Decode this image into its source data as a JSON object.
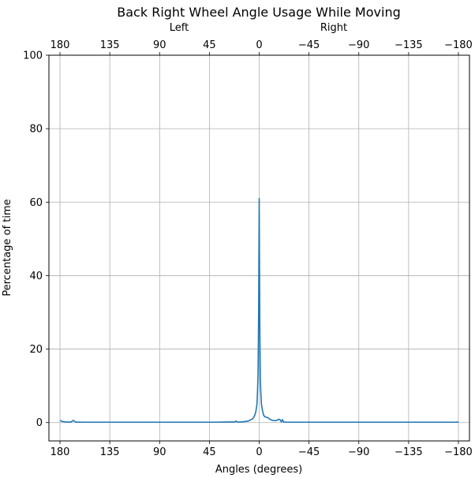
{
  "chart_data": {
    "type": "line",
    "title": "Back Right Wheel Angle Usage While Moving",
    "xlabel": "Angles (degrees)",
    "ylabel": "Percentage of time",
    "top_labels": {
      "left": "Left",
      "right": "Right"
    },
    "xlim": [
      190,
      -190
    ],
    "ylim": [
      -5,
      100
    ],
    "xticks": [
      180,
      135,
      90,
      45,
      0,
      -45,
      -90,
      -135,
      -180
    ],
    "xtick_labels": [
      "180",
      "135",
      "90",
      "45",
      "0",
      "−45",
      "−90",
      "−135",
      "−180"
    ],
    "yticks": [
      0,
      20,
      40,
      60,
      80,
      100
    ],
    "ytick_labels": [
      "0",
      "20",
      "40",
      "60",
      "80",
      "100"
    ],
    "grid": true,
    "series": [
      {
        "color": "#1f77b4",
        "x": [
          180,
          178,
          175,
          170,
          168,
          166,
          160,
          120,
          80,
          40,
          30,
          22,
          21,
          20,
          19,
          18,
          15,
          10,
          8,
          6,
          5,
          4,
          3,
          2,
          1.5,
          1,
          0.5,
          0,
          -0.5,
          -1,
          -1.5,
          -2,
          -3,
          -4,
          -5,
          -6,
          -8,
          -10,
          -12,
          -15,
          -18,
          -19,
          -20,
          -21,
          -22,
          -25,
          -30,
          -40,
          -60,
          -100,
          -140,
          -170,
          -178,
          -180
        ],
        "y": [
          0.6,
          0.3,
          0.15,
          0.15,
          0.6,
          0.15,
          0.1,
          0.1,
          0.1,
          0.1,
          0.15,
          0.2,
          0.4,
          0.2,
          0.1,
          0.15,
          0.2,
          0.4,
          0.7,
          1.0,
          1.4,
          2.0,
          3.0,
          5.0,
          8.5,
          14.0,
          30.0,
          61.0,
          28.0,
          12.0,
          8.0,
          5.0,
          3.2,
          2.0,
          1.6,
          1.5,
          1.3,
          0.8,
          0.6,
          0.5,
          0.9,
          0.7,
          0.2,
          0.8,
          0.15,
          0.1,
          0.1,
          0.1,
          0.1,
          0.1,
          0.1,
          0.1,
          0.1,
          0.2
        ]
      }
    ]
  }
}
